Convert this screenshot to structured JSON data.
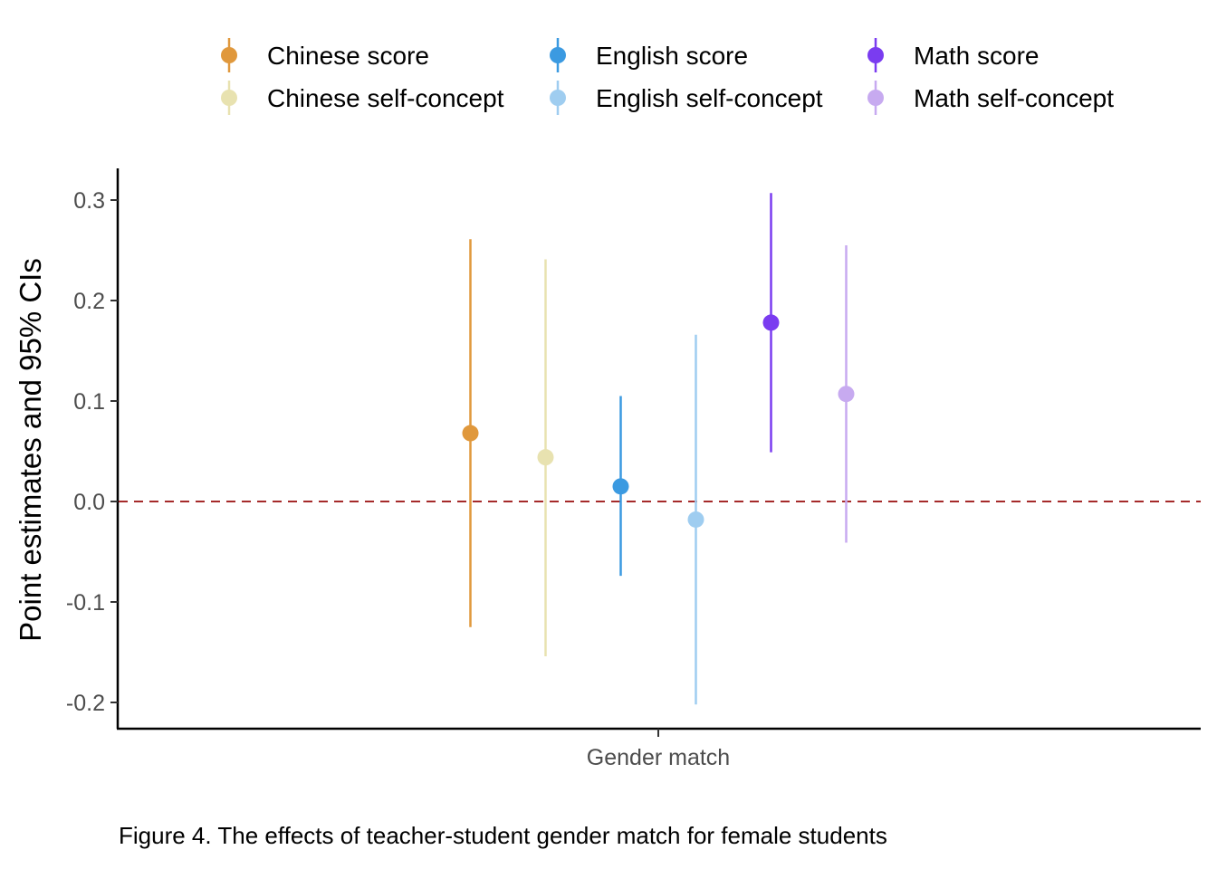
{
  "chart_data": {
    "type": "scatter",
    "subtype": "point-range",
    "caption": "Figure 4. The effects of teacher-student gender match for female students",
    "xlabel": "",
    "ylabel": "Point estimates and 95% CIs",
    "categories": [
      "Gender match"
    ],
    "ylim": [
      -0.23,
      0.335
    ],
    "yticks": [
      -0.2,
      -0.1,
      0.0,
      0.1,
      0.2,
      0.3
    ],
    "ytick_labels": [
      "-0.2",
      "-0.1",
      "0.0",
      "0.1",
      "0.2",
      "0.3"
    ],
    "reference_line": {
      "y": 0.0,
      "style": "dashed",
      "color": "#a52a2a"
    },
    "grid": false,
    "legend_position": "top",
    "series": [
      {
        "name": "Chinese score",
        "color": "#e0983c",
        "estimate": 0.068,
        "ci_low": -0.125,
        "ci_high": 0.261
      },
      {
        "name": "Chinese self-concept",
        "color": "#e8e2b0",
        "estimate": 0.044,
        "ci_low": -0.154,
        "ci_high": 0.241
      },
      {
        "name": "English score",
        "color": "#3b9ae1",
        "estimate": 0.015,
        "ci_low": -0.074,
        "ci_high": 0.105
      },
      {
        "name": "English self-concept",
        "color": "#9fcdf0",
        "estimate": -0.018,
        "ci_low": -0.202,
        "ci_high": 0.166
      },
      {
        "name": "Math score",
        "color": "#7a3cf0",
        "estimate": 0.178,
        "ci_low": 0.049,
        "ci_high": 0.307
      },
      {
        "name": "Math self-concept",
        "color": "#c7aaf0",
        "estimate": 0.107,
        "ci_low": -0.041,
        "ci_high": 0.255
      }
    ]
  }
}
